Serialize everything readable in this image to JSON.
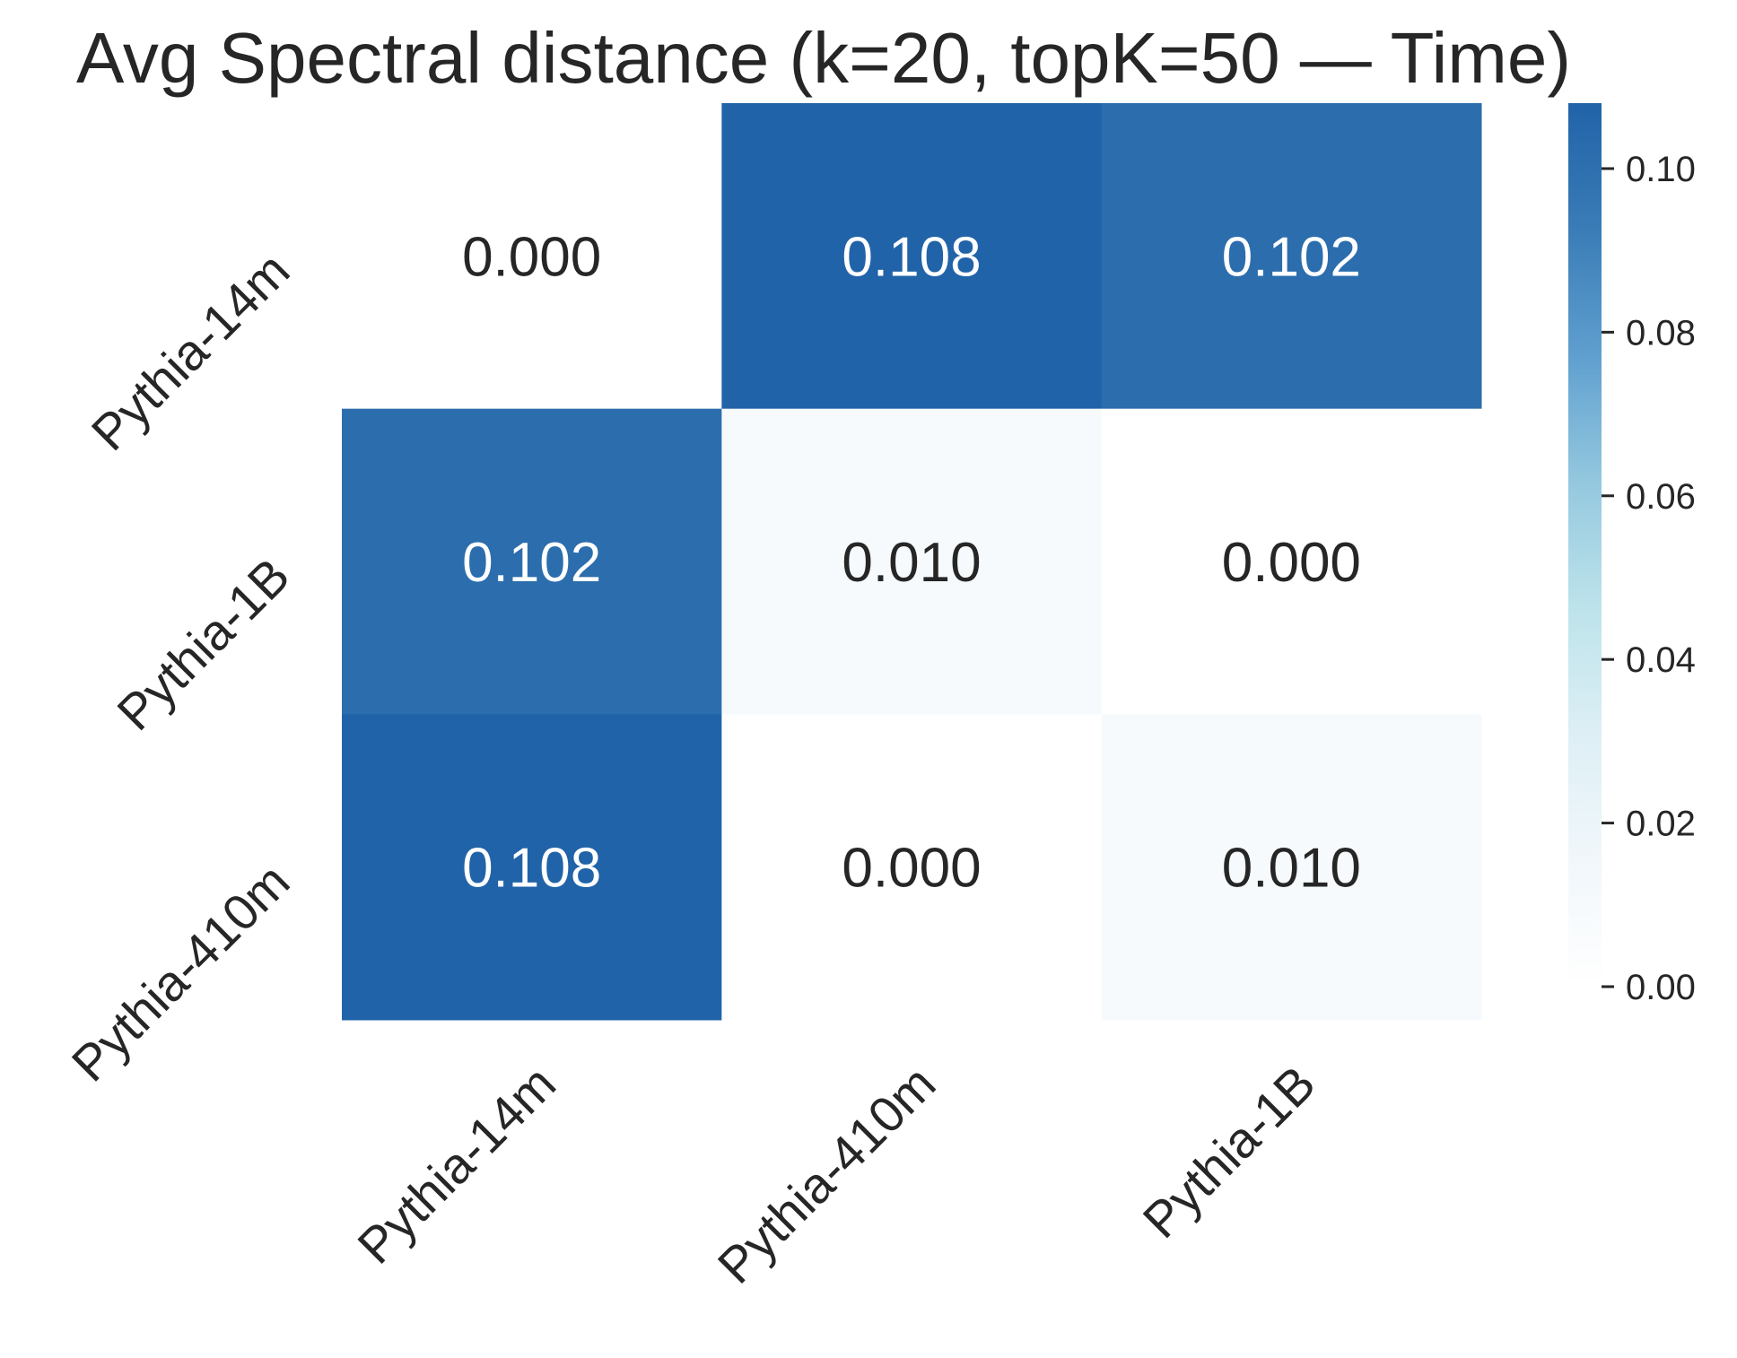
{
  "chart_data": {
    "type": "heatmap",
    "title": "Avg Spectral distance (k=20, topK=50 — Time)",
    "x_categories": [
      "Pythia-14m",
      "Pythia-410m",
      "Pythia-1B"
    ],
    "y_categories": [
      "Pythia-14m",
      "Pythia-1B",
      "Pythia-410m"
    ],
    "values": [
      [
        0.0,
        0.108,
        0.102
      ],
      [
        0.102,
        0.01,
        0.0
      ],
      [
        0.108,
        0.0,
        0.01
      ]
    ],
    "value_labels": [
      [
        "0.000",
        "0.108",
        "0.102"
      ],
      [
        "0.102",
        "0.010",
        "0.000"
      ],
      [
        "0.108",
        "0.000",
        "0.010"
      ]
    ],
    "colorbar": {
      "range": [
        0,
        0.108
      ],
      "ticks": [
        "0.00",
        "0.02",
        "0.04",
        "0.06",
        "0.08",
        "0.10"
      ],
      "colors": [
        "#ffffff",
        "#f1f7fb",
        "#ddeff5",
        "#bde3eb",
        "#94c8df",
        "#5f9fcf",
        "#3a7cb6",
        "#2163a8"
      ]
    },
    "xlabel": "",
    "ylabel": "",
    "grid": false,
    "legend": "colorbar-right"
  }
}
